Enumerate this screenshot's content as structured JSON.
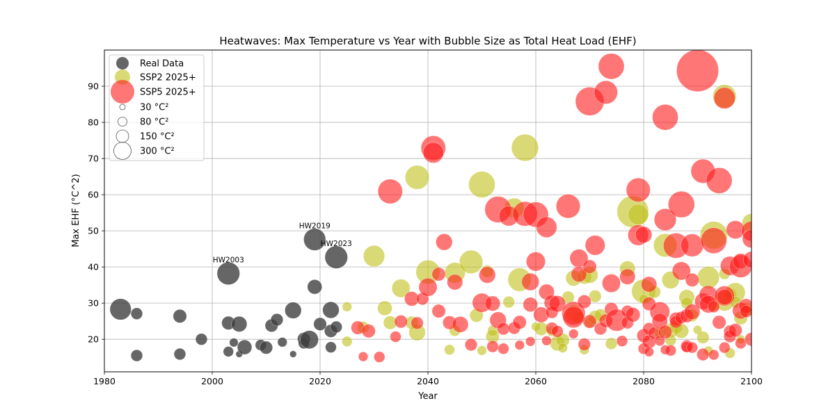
{
  "chart_data": {
    "type": "scatter",
    "title": "Heatwaves: Max Temperature vs Year with Bubble Size as Total Heat Load (EHF)",
    "xlabel": "Year",
    "ylabel": "Max EHF (°C^2)",
    "xlim": [
      1980,
      2100
    ],
    "ylim": [
      11,
      100
    ],
    "xticks": [
      "1980",
      "2000",
      "2020",
      "2040",
      "2060",
      "2080",
      "2100"
    ],
    "yticks": [
      "20",
      "30",
      "40",
      "50",
      "60",
      "70",
      "80",
      "90"
    ],
    "grid": true,
    "legend_position": "top-left",
    "size_legend": [
      {
        "label": "30 °C²",
        "value": 30
      },
      {
        "label": "80 °C²",
        "value": 80
      },
      {
        "label": "150 °C²",
        "value": 150
      },
      {
        "label": "300 °C²",
        "value": 300
      }
    ],
    "annotations": [
      {
        "text": "HW2003",
        "x": 2003,
        "y": 38.2
      },
      {
        "text": "HW2019",
        "x": 2019,
        "y": 47.6
      },
      {
        "text": "HW2023",
        "x": 2023,
        "y": 42.7
      }
    ],
    "series": [
      {
        "name": "Real Data",
        "color": "#404040",
        "opacity": 0.8,
        "points": [
          [
            1983,
            28.3,
            150
          ],
          [
            1986,
            27.1,
            45
          ],
          [
            1986,
            15.5,
            45
          ],
          [
            1994,
            26.4,
            60
          ],
          [
            1994,
            15.9,
            45
          ],
          [
            1998,
            20.0,
            45
          ],
          [
            2003,
            38.2,
            170
          ],
          [
            2003,
            24.5,
            60
          ],
          [
            2003,
            16.6,
            35
          ],
          [
            2004,
            19.1,
            25
          ],
          [
            2005,
            24.2,
            80
          ],
          [
            2005,
            15.9,
            15
          ],
          [
            2006,
            17.8,
            70
          ],
          [
            2009,
            18.4,
            40
          ],
          [
            2010,
            17.7,
            55
          ],
          [
            2011,
            23.8,
            55
          ],
          [
            2012,
            25.4,
            50
          ],
          [
            2013,
            19.2,
            30
          ],
          [
            2015,
            28.0,
            90
          ],
          [
            2015,
            15.9,
            15
          ],
          [
            2017,
            20.1,
            55
          ],
          [
            2017,
            18.9,
            40
          ],
          [
            2018,
            19.9,
            110
          ],
          [
            2019,
            47.6,
            160
          ],
          [
            2019,
            34.5,
            70
          ],
          [
            2020,
            24.2,
            55
          ],
          [
            2022,
            28.1,
            90
          ],
          [
            2022,
            22.3,
            55
          ],
          [
            2022,
            17.8,
            40
          ],
          [
            2023,
            42.7,
            170
          ],
          [
            2023,
            23.4,
            45
          ]
        ]
      },
      {
        "name": "SSP2 2025+",
        "color": "#bfbf19",
        "opacity": 0.6,
        "points": [
          [
            2025,
            29.0,
            30
          ],
          [
            2025,
            19.4,
            35
          ],
          [
            2028,
            23.3,
            45
          ],
          [
            2030,
            43.0,
            150
          ],
          [
            2032,
            28.6,
            70
          ],
          [
            2033,
            24.6,
            60
          ],
          [
            2035,
            34.1,
            110
          ],
          [
            2037,
            24.6,
            55
          ],
          [
            2038,
            64.8,
            190
          ],
          [
            2038,
            21.9,
            90
          ],
          [
            2040,
            38.6,
            190
          ],
          [
            2044,
            17.1,
            35
          ],
          [
            2045,
            38.4,
            140
          ],
          [
            2045,
            22.4,
            40
          ],
          [
            2048,
            41.4,
            180
          ],
          [
            2049,
            26.6,
            60
          ],
          [
            2050,
            62.8,
            230
          ],
          [
            2050,
            16.9,
            30
          ],
          [
            2051,
            38.8,
            50
          ],
          [
            2052,
            22.4,
            35
          ],
          [
            2052,
            20.8,
            60
          ],
          [
            2055,
            30.3,
            45
          ],
          [
            2056,
            56.3,
            130
          ],
          [
            2057,
            36.5,
            180
          ],
          [
            2058,
            73.0,
            240
          ],
          [
            2060,
            23.5,
            25
          ],
          [
            2061,
            22.9,
            60
          ],
          [
            2063,
            22.2,
            35
          ],
          [
            2064,
            18.9,
            75
          ],
          [
            2065,
            19.8,
            60
          ],
          [
            2065,
            17.6,
            30
          ],
          [
            2066,
            31.6,
            50
          ],
          [
            2067,
            36.9,
            80
          ],
          [
            2067,
            27.2,
            90
          ],
          [
            2068,
            26.0,
            45
          ],
          [
            2069,
            17.1,
            30
          ],
          [
            2069,
            37.3,
            70
          ],
          [
            2070,
            37.8,
            90
          ],
          [
            2070,
            24.7,
            35
          ],
          [
            2071,
            26.1,
            60
          ],
          [
            2071,
            31.9,
            50
          ],
          [
            2072,
            26.7,
            50
          ],
          [
            2074,
            18.8,
            45
          ],
          [
            2077,
            39.5,
            80
          ],
          [
            2078,
            55.3,
            330
          ],
          [
            2079,
            54.5,
            140
          ],
          [
            2080,
            33.3,
            190
          ],
          [
            2080,
            31.1,
            30
          ],
          [
            2082,
            33.1,
            50
          ],
          [
            2083,
            21.8,
            40
          ],
          [
            2084,
            46.0,
            180
          ],
          [
            2085,
            36.4,
            100
          ],
          [
            2085,
            19.7,
            40
          ],
          [
            2085,
            22.4,
            70
          ],
          [
            2086,
            23.4,
            55
          ],
          [
            2087,
            22.3,
            70
          ],
          [
            2088,
            31.6,
            80
          ],
          [
            2088,
            30.0,
            45
          ],
          [
            2089,
            26.6,
            50
          ],
          [
            2090,
            22.6,
            25
          ],
          [
            2091,
            20.5,
            50
          ],
          [
            2092,
            37.1,
            160
          ],
          [
            2092,
            16.8,
            30
          ],
          [
            2093,
            48.8,
            250
          ],
          [
            2093,
            29.3,
            40
          ],
          [
            2095,
            87.2,
            180
          ],
          [
            2095,
            30.6,
            130
          ],
          [
            2095,
            38.1,
            40
          ],
          [
            2096,
            32.3,
            60
          ],
          [
            2096,
            16.2,
            35
          ],
          [
            2097,
            32.9,
            130
          ],
          [
            2097,
            30.3,
            45
          ],
          [
            2098,
            25.9,
            60
          ],
          [
            2098,
            20.0,
            25
          ],
          [
            2099,
            28.4,
            50
          ],
          [
            2100,
            52.1,
            120
          ],
          [
            2100,
            28.0,
            40
          ]
        ]
      },
      {
        "name": "SSP5 2025+",
        "color": "#ff1a1a",
        "opacity": 0.6,
        "points": [
          [
            2027,
            23.2,
            60
          ],
          [
            2028,
            15.2,
            30
          ],
          [
            2029,
            22.3,
            60
          ],
          [
            2031,
            15.1,
            40
          ],
          [
            2033,
            60.9,
            200
          ],
          [
            2034,
            20.7,
            40
          ],
          [
            2035,
            24.9,
            55
          ],
          [
            2037,
            31.2,
            70
          ],
          [
            2038,
            24.5,
            50
          ],
          [
            2039,
            31.2,
            50
          ],
          [
            2040,
            34.4,
            110
          ],
          [
            2041,
            72.9,
            200
          ],
          [
            2041,
            71.6,
            140
          ],
          [
            2042,
            38.0,
            60
          ],
          [
            2042,
            27.8,
            60
          ],
          [
            2043,
            46.9,
            90
          ],
          [
            2044,
            24.6,
            60
          ],
          [
            2045,
            35.8,
            80
          ],
          [
            2046,
            24.1,
            85
          ],
          [
            2048,
            18.5,
            50
          ],
          [
            2050,
            30.1,
            120
          ],
          [
            2051,
            37.8,
            90
          ],
          [
            2052,
            29.9,
            75
          ],
          [
            2052,
            18.0,
            45
          ],
          [
            2053,
            55.9,
            230
          ],
          [
            2053,
            25.3,
            90
          ],
          [
            2054,
            22.9,
            50
          ],
          [
            2054,
            17.4,
            40
          ],
          [
            2055,
            54.1,
            130
          ],
          [
            2056,
            23.1,
            50
          ],
          [
            2057,
            24.7,
            60
          ],
          [
            2057,
            18.4,
            30
          ],
          [
            2058,
            54.7,
            200
          ],
          [
            2059,
            35.9,
            100
          ],
          [
            2059,
            29.6,
            70
          ],
          [
            2059,
            19.4,
            30
          ],
          [
            2060,
            54.5,
            210
          ],
          [
            2060,
            41.5,
            120
          ],
          [
            2061,
            26.8,
            80
          ],
          [
            2062,
            51.0,
            140
          ],
          [
            2062,
            33.1,
            80
          ],
          [
            2062,
            19.6,
            30
          ],
          [
            2063,
            30.1,
            80
          ],
          [
            2063,
            23.0,
            50
          ],
          [
            2063,
            27.5,
            50
          ],
          [
            2064,
            29.8,
            90
          ],
          [
            2064,
            22.2,
            45
          ],
          [
            2066,
            56.8,
            190
          ],
          [
            2067,
            27.2,
            180
          ],
          [
            2067,
            26.1,
            150
          ],
          [
            2067,
            21.5,
            30
          ],
          [
            2068,
            42.4,
            110
          ],
          [
            2068,
            38.0,
            80
          ],
          [
            2069,
            30.4,
            60
          ],
          [
            2069,
            18.6,
            50
          ],
          [
            2070,
            85.8,
            270
          ],
          [
            2070,
            40.1,
            60
          ],
          [
            2070,
            24.9,
            60
          ],
          [
            2071,
            46.0,
            130
          ],
          [
            2072,
            22.9,
            50
          ],
          [
            2073,
            88.3,
            180
          ],
          [
            2073,
            25.1,
            60
          ],
          [
            2074,
            95.5,
            220
          ],
          [
            2074,
            35.5,
            110
          ],
          [
            2074,
            28.3,
            60
          ],
          [
            2075,
            25.3,
            160
          ],
          [
            2076,
            19.5,
            40
          ],
          [
            2077,
            37.3,
            80
          ],
          [
            2077,
            27.7,
            50
          ],
          [
            2077,
            24.6,
            50
          ],
          [
            2078,
            26.8,
            70
          ],
          [
            2079,
            61.3,
            190
          ],
          [
            2079,
            48.8,
            140
          ],
          [
            2080,
            48.9,
            90
          ],
          [
            2080,
            21.0,
            60
          ],
          [
            2080,
            17.4,
            40
          ],
          [
            2081,
            35.2,
            80
          ],
          [
            2081,
            29.8,
            60
          ],
          [
            2081,
            22.9,
            50
          ],
          [
            2081,
            19.3,
            60
          ],
          [
            2081,
            16.5,
            30
          ],
          [
            2082,
            21.7,
            50
          ],
          [
            2083,
            27.6,
            130
          ],
          [
            2083,
            25.0,
            80
          ],
          [
            2083,
            19.6,
            35
          ],
          [
            2084,
            81.4,
            220
          ],
          [
            2084,
            53.1,
            160
          ],
          [
            2084,
            22.0,
            60
          ],
          [
            2084,
            17.1,
            30
          ],
          [
            2085,
            16.9,
            40
          ],
          [
            2086,
            45.9,
            210
          ],
          [
            2086,
            25.6,
            60
          ],
          [
            2086,
            24.8,
            50
          ],
          [
            2087,
            57.3,
            230
          ],
          [
            2087,
            38.9,
            110
          ],
          [
            2087,
            26.0,
            50
          ],
          [
            2088,
            26.5,
            60
          ],
          [
            2088,
            18.1,
            50
          ],
          [
            2088,
            17.9,
            40
          ],
          [
            2089,
            46.0,
            170
          ],
          [
            2089,
            36.4,
            60
          ],
          [
            2089,
            27.6,
            80
          ],
          [
            2089,
            17.7,
            40
          ],
          [
            2090,
            94.3,
            580
          ],
          [
            2091,
            66.5,
            190
          ],
          [
            2091,
            30.5,
            90
          ],
          [
            2091,
            15.8,
            50
          ],
          [
            2092,
            32.3,
            110
          ],
          [
            2092,
            29.7,
            100
          ],
          [
            2093,
            47.3,
            220
          ],
          [
            2093,
            29.0,
            45
          ],
          [
            2093,
            15.7,
            35
          ],
          [
            2094,
            63.9,
            220
          ],
          [
            2094,
            24.7,
            60
          ],
          [
            2095,
            86.7,
            150
          ],
          [
            2095,
            32.0,
            130
          ],
          [
            2095,
            31.7,
            80
          ],
          [
            2095,
            17.7,
            40
          ],
          [
            2096,
            40.3,
            120
          ],
          [
            2096,
            22.2,
            50
          ],
          [
            2096,
            20.8,
            50
          ],
          [
            2097,
            50.3,
            110
          ],
          [
            2097,
            22.5,
            60
          ],
          [
            2098,
            40.2,
            170
          ],
          [
            2098,
            41.6,
            80
          ],
          [
            2098,
            27.9,
            90
          ],
          [
            2098,
            18.9,
            40
          ],
          [
            2099,
            29.2,
            70
          ],
          [
            2099,
            27.7,
            50
          ],
          [
            2100,
            49.9,
            130
          ],
          [
            2100,
            47.8,
            110
          ],
          [
            2100,
            42.0,
            90
          ],
          [
            2100,
            20.0,
            60
          ]
        ]
      }
    ]
  }
}
